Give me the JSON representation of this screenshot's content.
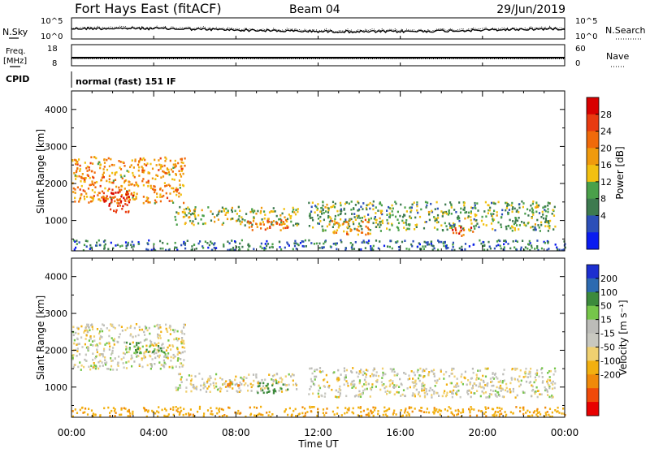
{
  "header": {
    "title": "Fort Hays East (fitACF)",
    "beam": "Beam 04",
    "date": "29/Jun/2019"
  },
  "strip_noise": {
    "left_label": "N.Sky",
    "right_label": "N.Search",
    "left_ticks": [
      "10^5",
      "10^0"
    ],
    "right_ticks": [
      "10^5",
      "10^0"
    ]
  },
  "strip_freq": {
    "left_label_line1": "Freq.",
    "left_label_line2": "[MHz]",
    "right_label": "Nave",
    "left_ticks": [
      "18",
      "8"
    ],
    "right_ticks": [
      "60",
      "0"
    ]
  },
  "cpid": {
    "label": "CPID",
    "value": "normal (fast) 151 IF"
  },
  "colors": {
    "power_scale": [
      "#0a1cf0",
      "#2c4fb8",
      "#3d7a4f",
      "#4aa04a",
      "#f2c010",
      "#f09a0c",
      "#f06a0a",
      "#e83a10",
      "#d80000"
    ],
    "velocity_scale": [
      "#e80000",
      "#f04a0a",
      "#f08a0a",
      "#f2b010",
      "#f0d070",
      "#c8c8c0",
      "#bcbcb8",
      "#76c64a",
      "#3c8a3c",
      "#2c6ab0",
      "#1c2fd0"
    ]
  },
  "chart_data": [
    {
      "type": "heatmap",
      "title": "Power",
      "xlabel": "",
      "ylabel": "Slant Range [km]",
      "xlim": [
        "00:00",
        "24:00"
      ],
      "ylim": [
        180,
        4500
      ],
      "x_ticks": [
        "00:00",
        "04:00",
        "08:00",
        "12:00",
        "16:00",
        "20:00",
        "00:00"
      ],
      "y_ticks": [
        1000,
        2000,
        3000,
        4000
      ],
      "colorbar": {
        "label": "Power [dB]",
        "range": [
          0,
          32
        ],
        "tick_labels": [
          "4",
          "8",
          "12",
          "16",
          "20",
          "24",
          "28"
        ]
      },
      "echo_regions": [
        {
          "t_start": 0.0,
          "t_end": 5.5,
          "r_start": 1450,
          "r_end": 2700,
          "level_db": 20
        },
        {
          "t_start": 1.5,
          "t_end": 3.0,
          "r_start": 1200,
          "r_end": 1800,
          "level_db": 28
        },
        {
          "t_start": 5.0,
          "t_end": 11.0,
          "r_start": 850,
          "r_end": 1350,
          "level_db": 14
        },
        {
          "t_start": 8.5,
          "t_end": 10.5,
          "r_start": 700,
          "r_end": 1000,
          "level_db": 22
        },
        {
          "t_start": 11.5,
          "t_end": 23.5,
          "r_start": 700,
          "r_end": 1500,
          "level_db": 12
        },
        {
          "t_start": 12.5,
          "t_end": 14.5,
          "r_start": 600,
          "r_end": 1000,
          "level_db": 20
        },
        {
          "t_start": 18.5,
          "t_end": 19.5,
          "r_start": 550,
          "r_end": 800,
          "level_db": 26
        },
        {
          "t_start": 0.0,
          "t_end": 24.0,
          "r_start": 180,
          "r_end": 450,
          "level_db": 8
        }
      ]
    },
    {
      "type": "heatmap",
      "title": "Velocity",
      "xlabel": "Time UT",
      "ylabel": "Slant Range [km]",
      "xlim": [
        "00:00",
        "24:00"
      ],
      "ylim": [
        180,
        4500
      ],
      "x_ticks": [
        "00:00",
        "04:00",
        "08:00",
        "12:00",
        "16:00",
        "20:00",
        "00:00"
      ],
      "y_ticks": [
        1000,
        2000,
        3000,
        4000
      ],
      "colorbar": {
        "label": "Velocity [m s⁻¹]",
        "range": [
          -250,
          250
        ],
        "tick_labels": [
          "200",
          "100",
          "50",
          "15",
          "-15",
          "-50",
          "-100",
          "-200"
        ]
      },
      "echo_regions": [
        {
          "t_start": 0.0,
          "t_end": 5.5,
          "r_start": 1450,
          "r_end": 2700,
          "level_ms": 0
        },
        {
          "t_start": 2.5,
          "t_end": 4.5,
          "r_start": 1900,
          "r_end": 2200,
          "level_ms": 60
        },
        {
          "t_start": 5.0,
          "t_end": 11.0,
          "r_start": 850,
          "r_end": 1350,
          "level_ms": 0
        },
        {
          "t_start": 9.0,
          "t_end": 10.5,
          "r_start": 800,
          "r_end": 1100,
          "level_ms": 70
        },
        {
          "t_start": 7.5,
          "t_end": 8.5,
          "r_start": 1000,
          "r_end": 1200,
          "level_ms": -90
        },
        {
          "t_start": 11.5,
          "t_end": 23.5,
          "r_start": 700,
          "r_end": 1500,
          "level_ms": 0
        },
        {
          "t_start": 0.0,
          "t_end": 24.0,
          "r_start": 180,
          "r_end": 450,
          "level_ms": -40
        }
      ]
    }
  ]
}
